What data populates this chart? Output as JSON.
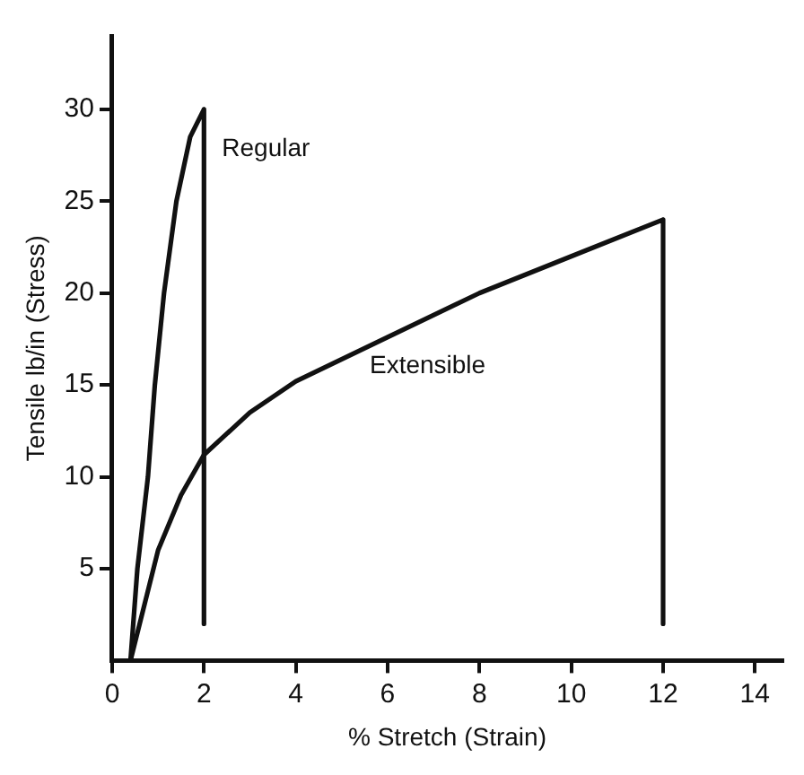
{
  "chart_data": {
    "type": "line",
    "xlabel": "% Stretch (Strain)",
    "ylabel": "Tensile lb/in (Stress)",
    "xlim": [
      0,
      14.6
    ],
    "ylim": [
      0,
      34
    ],
    "xticks": [
      0,
      2,
      4,
      6,
      8,
      10,
      12,
      14
    ],
    "yticks": [
      5,
      10,
      15,
      20,
      25,
      30
    ],
    "grid": false,
    "legend": false,
    "marker": "none",
    "line_style": "solid",
    "series": [
      {
        "name": "Regular",
        "color": "#111111",
        "x": [
          0.4,
          0.55,
          0.78,
          0.93,
          1.13,
          1.4,
          1.7,
          2,
          2
        ],
        "values": [
          0,
          5,
          10,
          15,
          20,
          25,
          28.5,
          30,
          2
        ]
      },
      {
        "name": "Extensible",
        "color": "#111111",
        "x": [
          0.4,
          0.6,
          1,
          1.5,
          2,
          3,
          4,
          6,
          8,
          10,
          12,
          12
        ],
        "values": [
          0,
          2,
          6,
          9,
          11.2,
          13.5,
          15.2,
          17.6,
          20,
          22,
          24,
          2
        ]
      }
    ]
  }
}
